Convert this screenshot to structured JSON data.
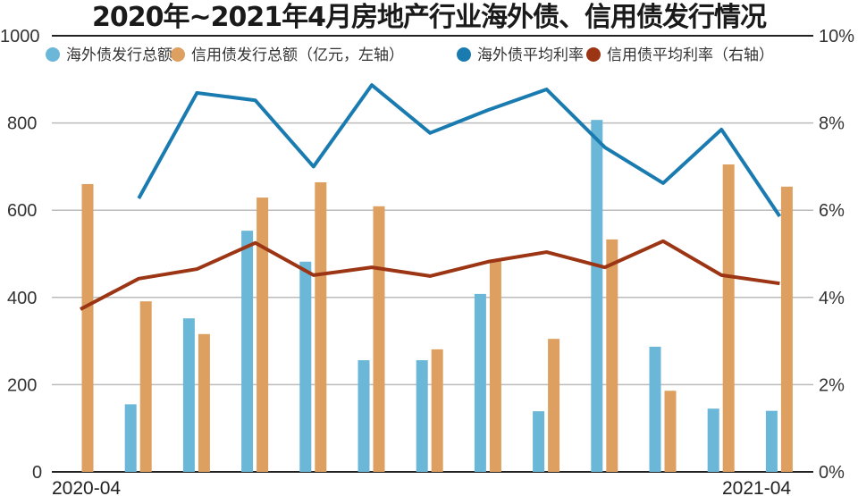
{
  "chart_data": {
    "type": "bar",
    "title": "2020年~2021年4月房地产行业海外债、信用债发行情况",
    "x_tick_labels": [
      "2020-04",
      "2021-04"
    ],
    "months": 13,
    "left_axis": {
      "ylim": [
        0,
        1000
      ],
      "ticks": [
        "0",
        "200",
        "400",
        "600",
        "800",
        "1000"
      ]
    },
    "right_axis": {
      "ylim": [
        0,
        10
      ],
      "ticks": [
        "0%",
        "2%",
        "4%",
        "6%",
        "8%",
        "10%"
      ]
    },
    "grid": true,
    "legend_placement": "top",
    "series": [
      {
        "name": "海外债发行总额",
        "type": "bar",
        "axis": "left",
        "color": "#6bb7d8",
        "values": [
          null,
          155,
          352,
          553,
          482,
          256,
          256,
          408,
          139,
          807,
          287,
          145,
          140
        ]
      },
      {
        "name": "信用债发行总额（亿元，左轴）",
        "type": "bar",
        "axis": "left",
        "color": "#dea060",
        "values": [
          660,
          391,
          316,
          629,
          664,
          609,
          281,
          486,
          305,
          533,
          186,
          705,
          654
        ]
      },
      {
        "name": "海外债平均利率",
        "type": "line",
        "axis": "right",
        "color": "#1a7bb0",
        "values": [
          null,
          6.27,
          8.69,
          8.52,
          7.0,
          8.87,
          7.77,
          8.3,
          8.77,
          7.44,
          6.62,
          7.85,
          5.86
        ]
      },
      {
        "name": "信用债平均利率（右轴）",
        "type": "line",
        "axis": "right",
        "color": "#9b3514",
        "values": [
          3.73,
          4.43,
          4.65,
          5.25,
          4.51,
          4.69,
          4.49,
          4.82,
          5.04,
          4.69,
          5.29,
          4.51,
          4.32
        ]
      }
    ]
  }
}
